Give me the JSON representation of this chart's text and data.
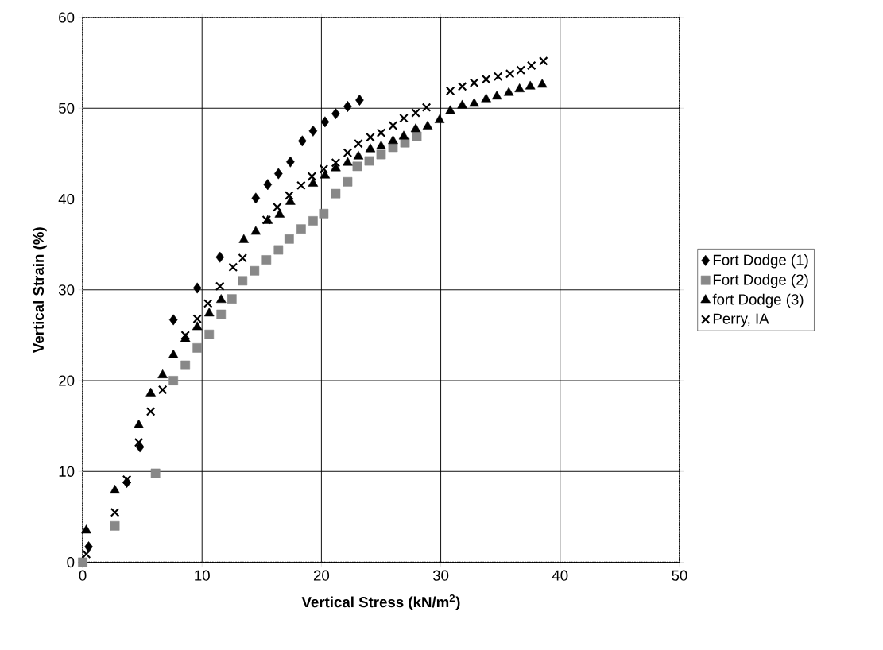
{
  "chart_data": {
    "type": "scatter",
    "xlabel": "Vertical Stress (kN/m$^{2}$)",
    "ylabel": "Vertical Strain (%)",
    "xlim": [
      0,
      50
    ],
    "ylim": [
      0,
      60
    ],
    "xticks": [
      0,
      10,
      20,
      30,
      40,
      50
    ],
    "yticks": [
      0,
      10,
      20,
      30,
      40,
      50,
      60
    ],
    "grid": true,
    "legend": "right",
    "series": [
      {
        "name": "Fort Dodge (1)",
        "color": "#000000",
        "marker": "diamond",
        "x": [
          0,
          0.5,
          3.7,
          4.8,
          7.6,
          9.6,
          11.5,
          14.5,
          15.5,
          16.4,
          17.4,
          18.4,
          19.3,
          20.3,
          21.2,
          22.2,
          23.2
        ],
        "values": [
          0,
          1.7,
          8.8,
          12.7,
          26.7,
          30.2,
          33.6,
          40.1,
          41.6,
          42.8,
          44.1,
          46.4,
          47.5,
          48.5,
          49.4,
          50.2,
          50.9
        ]
      },
      {
        "name": "Fort Dodge (2)",
        "color": "#888888",
        "marker": "square",
        "x": [
          0,
          2.7,
          6.1,
          7.6,
          8.6,
          9.6,
          10.6,
          11.6,
          12.5,
          13.4,
          14.4,
          15.4,
          16.4,
          17.3,
          18.3,
          19.3,
          20.2,
          21.2,
          22.2,
          23.0,
          24.0,
          25.0,
          26.0,
          27.0,
          28.0
        ],
        "values": [
          0,
          4.0,
          9.8,
          20.0,
          21.7,
          23.6,
          25.1,
          27.3,
          29.0,
          31.0,
          32.1,
          33.3,
          34.4,
          35.6,
          36.7,
          37.6,
          38.4,
          40.6,
          41.9,
          43.6,
          44.2,
          44.9,
          45.7,
          46.2,
          46.9
        ]
      },
      {
        "name": "fort Dodge (3)",
        "color": "#000000",
        "marker": "triangle",
        "x": [
          0.3,
          2.7,
          4.7,
          5.7,
          6.7,
          7.6,
          8.6,
          9.6,
          10.6,
          11.6,
          13.5,
          14.5,
          15.5,
          16.5,
          17.4,
          19.3,
          20.3,
          21.2,
          22.2,
          23.1,
          24.1,
          25.0,
          26.0,
          26.9,
          27.9,
          28.9,
          29.9,
          30.8,
          31.8,
          32.8,
          33.8,
          34.7,
          35.7,
          36.6,
          37.5,
          38.5
        ],
        "values": [
          3.5,
          7.9,
          15.1,
          18.6,
          20.6,
          22.8,
          24.6,
          25.9,
          27.4,
          28.9,
          35.5,
          36.4,
          37.6,
          38.3,
          39.7,
          41.7,
          42.6,
          43.4,
          44.0,
          44.7,
          45.5,
          45.8,
          46.4,
          46.9,
          47.7,
          48.0,
          48.7,
          49.7,
          50.3,
          50.5,
          51.0,
          51.3,
          51.7,
          52.1,
          52.4,
          52.6
        ]
      },
      {
        "name": "Perry, IA",
        "color": "#000000",
        "marker": "cross",
        "x": [
          0.3,
          2.7,
          3.7,
          4.7,
          5.7,
          6.7,
          8.6,
          9.6,
          10.5,
          11.5,
          12.6,
          13.4,
          15.4,
          16.3,
          17.3,
          18.3,
          19.2,
          20.2,
          21.2,
          22.2,
          23.1,
          24.1,
          25.0,
          26.0,
          26.9,
          27.9,
          28.8,
          30.8,
          31.8,
          32.8,
          33.8,
          34.8,
          35.8,
          36.7,
          37.6,
          38.6
        ],
        "values": [
          0.9,
          5.5,
          9.1,
          13.2,
          16.6,
          19.0,
          25.0,
          26.8,
          28.5,
          30.4,
          32.5,
          33.5,
          37.7,
          39.1,
          40.4,
          41.5,
          42.5,
          43.3,
          44.0,
          45.1,
          46.1,
          46.8,
          47.3,
          48.1,
          48.9,
          49.5,
          50.1,
          51.9,
          52.4,
          52.8,
          53.2,
          53.5,
          53.8,
          54.2,
          54.7,
          55.2
        ]
      }
    ]
  }
}
